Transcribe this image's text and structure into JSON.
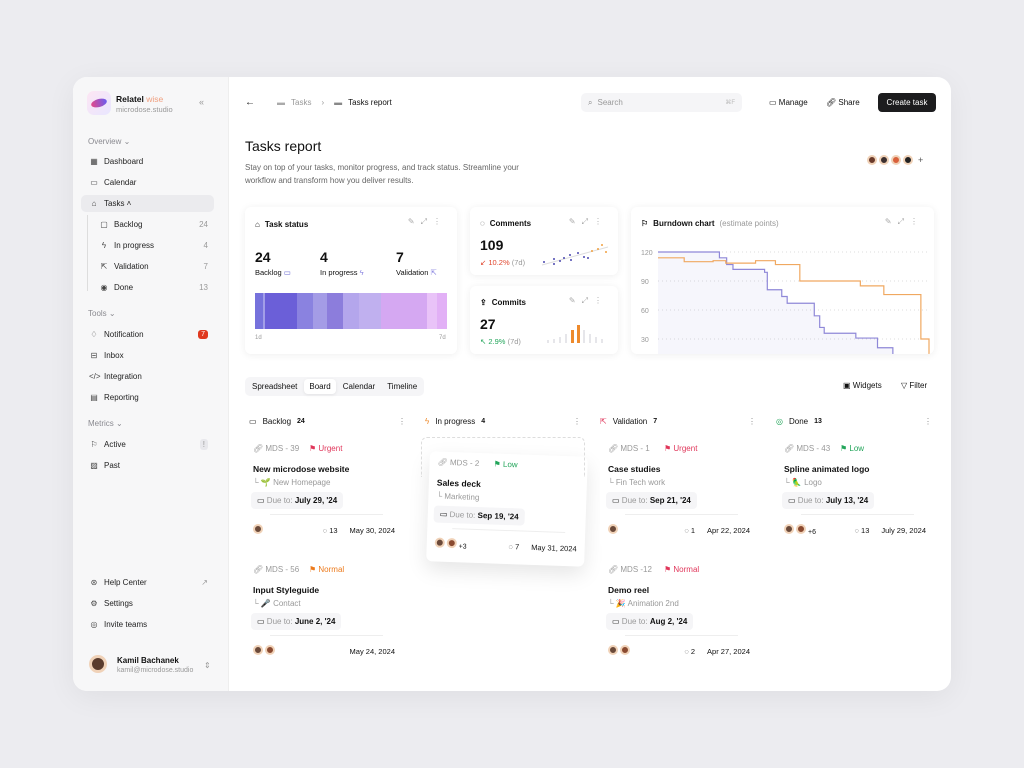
{
  "sidebar": {
    "brand": {
      "name": "Relatel",
      "name_suffix": "wise",
      "domain": "microdose.studio",
      "collapse_icon": "double-chevron-left-icon"
    },
    "sections": {
      "overview": "Overview",
      "tools": "Tools",
      "metrics": "Metrics"
    },
    "overview_items": [
      {
        "label": "Dashboard",
        "icon": "dashboard-icon"
      },
      {
        "label": "Calendar",
        "icon": "calendar-icon"
      },
      {
        "label": "Tasks",
        "icon": "tasks-icon"
      }
    ],
    "task_items": [
      {
        "label": "Backlog",
        "count": "24"
      },
      {
        "label": "In progress",
        "count": "4"
      },
      {
        "label": "Validation",
        "count": "7"
      },
      {
        "label": "Done",
        "count": "13"
      }
    ],
    "tool_items": [
      {
        "label": "Notification",
        "badge": "7"
      },
      {
        "label": "Inbox"
      },
      {
        "label": "Integration"
      },
      {
        "label": "Reporting"
      }
    ],
    "metric_items": [
      {
        "label": "Active",
        "badge": "!"
      },
      {
        "label": "Past"
      }
    ],
    "bottom_items": [
      {
        "label": "Help Center"
      },
      {
        "label": "Settings"
      },
      {
        "label": "Invite teams"
      }
    ],
    "user": {
      "name": "Kamil Bachanek",
      "email": "kamil@microdose.studio"
    }
  },
  "header": {
    "breadcrumb": [
      "Tasks",
      "Tasks report"
    ],
    "search_placeholder": "Search",
    "search_shortcut": "⌘F",
    "manage": "Manage",
    "share": "Share",
    "create": "Create task"
  },
  "page": {
    "title": "Tasks report",
    "description_line1": "Stay on top of your tasks, monitor progress, and track status. Streamline your",
    "description_line2": "workflow and transform how you deliver results."
  },
  "task_status": {
    "title": "Task status",
    "stats": [
      {
        "value": "24",
        "label": "Backlog"
      },
      {
        "value": "4",
        "label": "In progress"
      },
      {
        "value": "7",
        "label": "Validation"
      }
    ],
    "range_start": "1d",
    "range_end": "7d"
  },
  "comments": {
    "title": "Comments",
    "value": "109",
    "change": "10.2%",
    "period": "(7d)",
    "trend": "down"
  },
  "commits": {
    "title": "Commits",
    "value": "27",
    "change": "2.9%",
    "period": "(7d)",
    "trend": "up"
  },
  "burndown": {
    "title": "Burndown chart",
    "subtitle": "(estimate points)"
  },
  "chart_data": {
    "type": "line",
    "title": "Burndown chart",
    "subtitle": "(estimate points)",
    "yticks": [
      120,
      90,
      60,
      30
    ],
    "ylim": [
      15,
      125
    ],
    "grid": true,
    "series": [
      {
        "color": "#8f88d8",
        "points": [
          [
            0,
            120
          ],
          [
            6.8,
            114
          ],
          [
            7.6,
            107
          ],
          [
            8.3,
            102
          ],
          [
            11.8,
            99
          ],
          [
            12.1,
            81
          ],
          [
            13.7,
            74
          ],
          [
            14.3,
            67
          ],
          [
            17.3,
            54
          ],
          [
            17.9,
            42
          ],
          [
            18.4,
            36
          ],
          [
            21.9,
            31
          ],
          [
            24.3,
            21
          ],
          [
            26,
            12
          ]
        ]
      },
      {
        "color": "#f0a860",
        "points": [
          [
            0,
            114
          ],
          [
            2.9,
            110
          ],
          [
            6.1,
            111
          ],
          [
            7.5,
            108.5
          ],
          [
            10.8,
            111
          ],
          [
            13,
            107
          ],
          [
            15.7,
            90
          ],
          [
            22.4,
            85
          ],
          [
            25,
            76
          ],
          [
            29.1,
            30
          ],
          [
            30,
            15
          ]
        ]
      }
    ]
  },
  "views": {
    "tabs": [
      "Spreadsheet",
      "Board",
      "Calendar",
      "Timeline"
    ],
    "active": "Board",
    "widgets": "Widgets",
    "filter": "Filter"
  },
  "columns": [
    {
      "title": "Backlog",
      "count": "24",
      "tasks": [
        {
          "id": "MDS - 39",
          "priority": "Urgent",
          "pcolor": "#e0365a",
          "title": "New microdose website",
          "sub": "🌱 New Homepage",
          "due_label": "Due to:",
          "due": "July 29, '24",
          "comments": "13",
          "date": "May 30, 2024",
          "extra": ""
        },
        {
          "id": "MDS - 56",
          "priority": "Normal",
          "pcolor": "#ec7a1c",
          "title": "Input Styleguide",
          "sub": "🎤 Contact",
          "due_label": "Due to:",
          "due": "June 2, '24",
          "comments": "",
          "date": "May 24, 2024",
          "extra": ""
        }
      ]
    },
    {
      "title": "In progress",
      "count": "4",
      "tasks": [
        {
          "id": "MDS - 2",
          "priority": "Low",
          "pcolor": "#22a55a",
          "title": "Sales deck",
          "sub": "Marketing",
          "due_label": "Due to:",
          "due": "Sep 19, '24",
          "comments": "7",
          "date": "May 31, 2024",
          "extra": "+3"
        }
      ]
    },
    {
      "title": "Validation",
      "count": "7",
      "tasks": [
        {
          "id": "MDS - 1",
          "priority": "Urgent",
          "pcolor": "#e0365a",
          "title": "Case studies",
          "sub": "Fin Tech work",
          "due_label": "Due to:",
          "due": "Sep 21, '24",
          "comments": "1",
          "date": "Apr 22, 2024",
          "extra": ""
        },
        {
          "id": "MDS -12",
          "priority": "Normal",
          "pcolor": "#e0365a",
          "title": "Demo reel",
          "sub": "🎉 Animation 2nd",
          "due_label": "Due to:",
          "due": "Aug 2, '24",
          "comments": "2",
          "date": "Apr 27, 2024",
          "extra": ""
        }
      ]
    },
    {
      "title": "Done",
      "count": "13",
      "tasks": [
        {
          "id": "MDS - 43",
          "priority": "Low",
          "pcolor": "#22a55a",
          "title": "Spline animated logo",
          "sub": "🦜 Logo",
          "due_label": "Due to:",
          "due": "July 13, '24",
          "comments": "13",
          "date": "July 29, 2024",
          "extra": "+6"
        }
      ]
    }
  ]
}
